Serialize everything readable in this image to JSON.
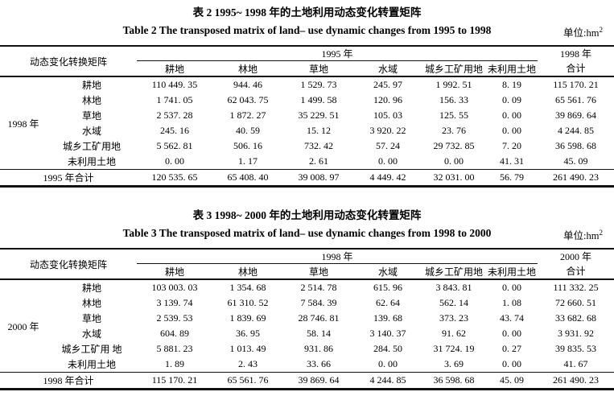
{
  "tables": [
    {
      "title_zh": "表 2  1995~ 1998 年的土地利用动态变化转置矩阵",
      "title_en": "Table 2  The transposed matrix of land– use dynamic changes from 1995 to 1998",
      "unit_prefix": "单位:hm",
      "unit_exponent": "2",
      "corner_label": "动态变化转换矩阵",
      "col_group_label": "1995 年",
      "columns": [
        "耕地",
        "林地",
        "草地",
        "水域",
        "城乡工矿用地",
        "未利用土地"
      ],
      "total_col_label_top": "1998 年",
      "total_col_label_bottom": "合计",
      "row_group_label": "1998 年",
      "rows": [
        {
          "label": "耕地",
          "values": [
            "110 449. 35",
            "944. 46",
            "1 529. 73",
            "245. 97",
            "1 992. 51",
            "8. 19"
          ],
          "total": "115 170. 21"
        },
        {
          "label": "林地",
          "values": [
            "1 741. 05",
            "62 043. 75",
            "1 499. 58",
            "120. 96",
            "156. 33",
            "0. 09"
          ],
          "total": "65 561. 76"
        },
        {
          "label": "草地",
          "values": [
            "2 537. 28",
            "1 872. 27",
            "35 229. 51",
            "105. 03",
            "125. 55",
            "0. 00"
          ],
          "total": "39 869. 64"
        },
        {
          "label": "水域",
          "values": [
            "245. 16",
            "40. 59",
            "15. 12",
            "3 920. 22",
            "23. 76",
            "0. 00"
          ],
          "total": "4 244. 85"
        },
        {
          "label": "城乡工矿用地",
          "values": [
            "5 562. 81",
            "506. 16",
            "732. 42",
            "57. 24",
            "29 732. 85",
            "7. 20"
          ],
          "total": "36 598. 68"
        },
        {
          "label": "未利用土地",
          "values": [
            "0. 00",
            "1. 17",
            "2. 61",
            "0. 00",
            "0. 00",
            "41. 31"
          ],
          "total": "45. 09"
        }
      ],
      "total_row": {
        "label": "1995 年合计",
        "values": [
          "120 535. 65",
          "65 408. 40",
          "39 008. 97",
          "4 449. 42",
          "32 031. 00",
          "56. 79"
        ],
        "total": "261 490. 23"
      }
    },
    {
      "title_zh": "表 3  1998~ 2000 年的土地利用动态变化转置矩阵",
      "title_en": "Table 3  The transposed matrix of land– use dynamic changes from 1998 to 2000",
      "unit_prefix": "单位:hm",
      "unit_exponent": "2",
      "corner_label": "动态变化转换矩阵",
      "col_group_label": "1998 年",
      "columns": [
        "耕地",
        "林地",
        "草地",
        "水域",
        "城乡工矿用地",
        "未利用土地"
      ],
      "total_col_label_top": "2000 年",
      "total_col_label_bottom": "合计",
      "row_group_label": "2000 年",
      "rows": [
        {
          "label": "耕地",
          "values": [
            "103 003. 03",
            "1 354. 68",
            "2 514. 78",
            "615. 96",
            "3 843. 81",
            "0. 00"
          ],
          "total": "111 332. 25"
        },
        {
          "label": "林地",
          "values": [
            "3 139. 74",
            "61 310. 52",
            "7 584. 39",
            "62. 64",
            "562. 14",
            "1. 08"
          ],
          "total": "72 660. 51"
        },
        {
          "label": "草地",
          "values": [
            "2 539. 53",
            "1 839. 69",
            "28 746. 81",
            "139. 68",
            "373. 23",
            "43. 74"
          ],
          "total": "33 682. 68"
        },
        {
          "label": "水域",
          "values": [
            "604. 89",
            "36. 95",
            "58. 14",
            "3 140. 37",
            "91. 62",
            "0. 00"
          ],
          "total": "3 931. 92"
        },
        {
          "label": "城乡工矿用 地",
          "values": [
            "5 881. 23",
            "1 013. 49",
            "931. 86",
            "284. 50",
            "31 724. 19",
            "0. 27"
          ],
          "total": "39 835. 53"
        },
        {
          "label": "未利用土地",
          "values": [
            "1. 89",
            "2. 43",
            "33. 66",
            "0. 00",
            "3. 69",
            "0. 00"
          ],
          "total": "41. 67"
        }
      ],
      "total_row": {
        "label": "1998 年合计",
        "values": [
          "115 170. 21",
          "65 561. 76",
          "39 869. 64",
          "4 244. 85",
          "36 598. 68",
          "45. 09"
        ],
        "total": "261 490. 23"
      }
    }
  ]
}
